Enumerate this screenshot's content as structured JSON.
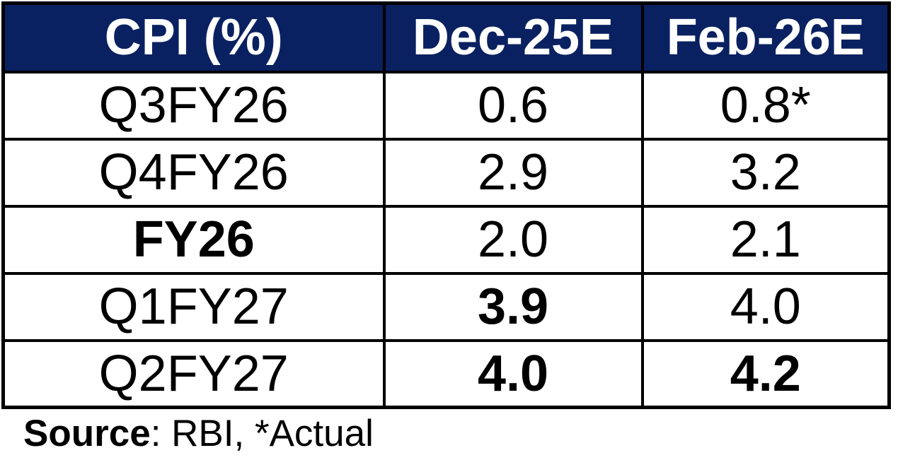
{
  "colors": {
    "header_bg": "#0A2161",
    "header_text": "#FFFFFF",
    "border": "#000000",
    "body_text": "#000000",
    "page_bg": "#FFFFFF"
  },
  "table": {
    "columns": [
      "CPI (%)",
      "Dec-25E",
      "Feb-26E"
    ],
    "rows": [
      {
        "label": "Q3FY26",
        "dec": "0.6",
        "feb": "0.8*",
        "label_bold": false,
        "dec_bold": false,
        "feb_bold": false
      },
      {
        "label": "Q4FY26",
        "dec": "2.9",
        "feb": "3.2",
        "label_bold": false,
        "dec_bold": false,
        "feb_bold": false
      },
      {
        "label": "FY26",
        "dec": "2.0",
        "feb": "2.1",
        "label_bold": true,
        "dec_bold": false,
        "feb_bold": false
      },
      {
        "label": "Q1FY27",
        "dec": "3.9",
        "feb": "4.0",
        "label_bold": false,
        "dec_bold": true,
        "feb_bold": false
      },
      {
        "label": "Q2FY27",
        "dec": "4.0",
        "feb": "4.2",
        "label_bold": false,
        "dec_bold": true,
        "feb_bold": true
      }
    ]
  },
  "footer": {
    "source_label": "Source",
    "source_rest": ": RBI, *Actual"
  },
  "chart_data": {
    "type": "table",
    "title": "CPI (%)",
    "categories": [
      "Q3FY26",
      "Q4FY26",
      "FY26",
      "Q1FY27",
      "Q2FY27"
    ],
    "series": [
      {
        "name": "Dec-25E",
        "values": [
          0.6,
          2.9,
          2.0,
          3.9,
          4.0
        ]
      },
      {
        "name": "Feb-26E",
        "values": [
          0.8,
          3.2,
          2.1,
          4.0,
          4.2
        ]
      }
    ],
    "note": "Source: RBI, *Actual (0.8 for Q3FY26 Feb-26E is marked with * as actual)"
  }
}
